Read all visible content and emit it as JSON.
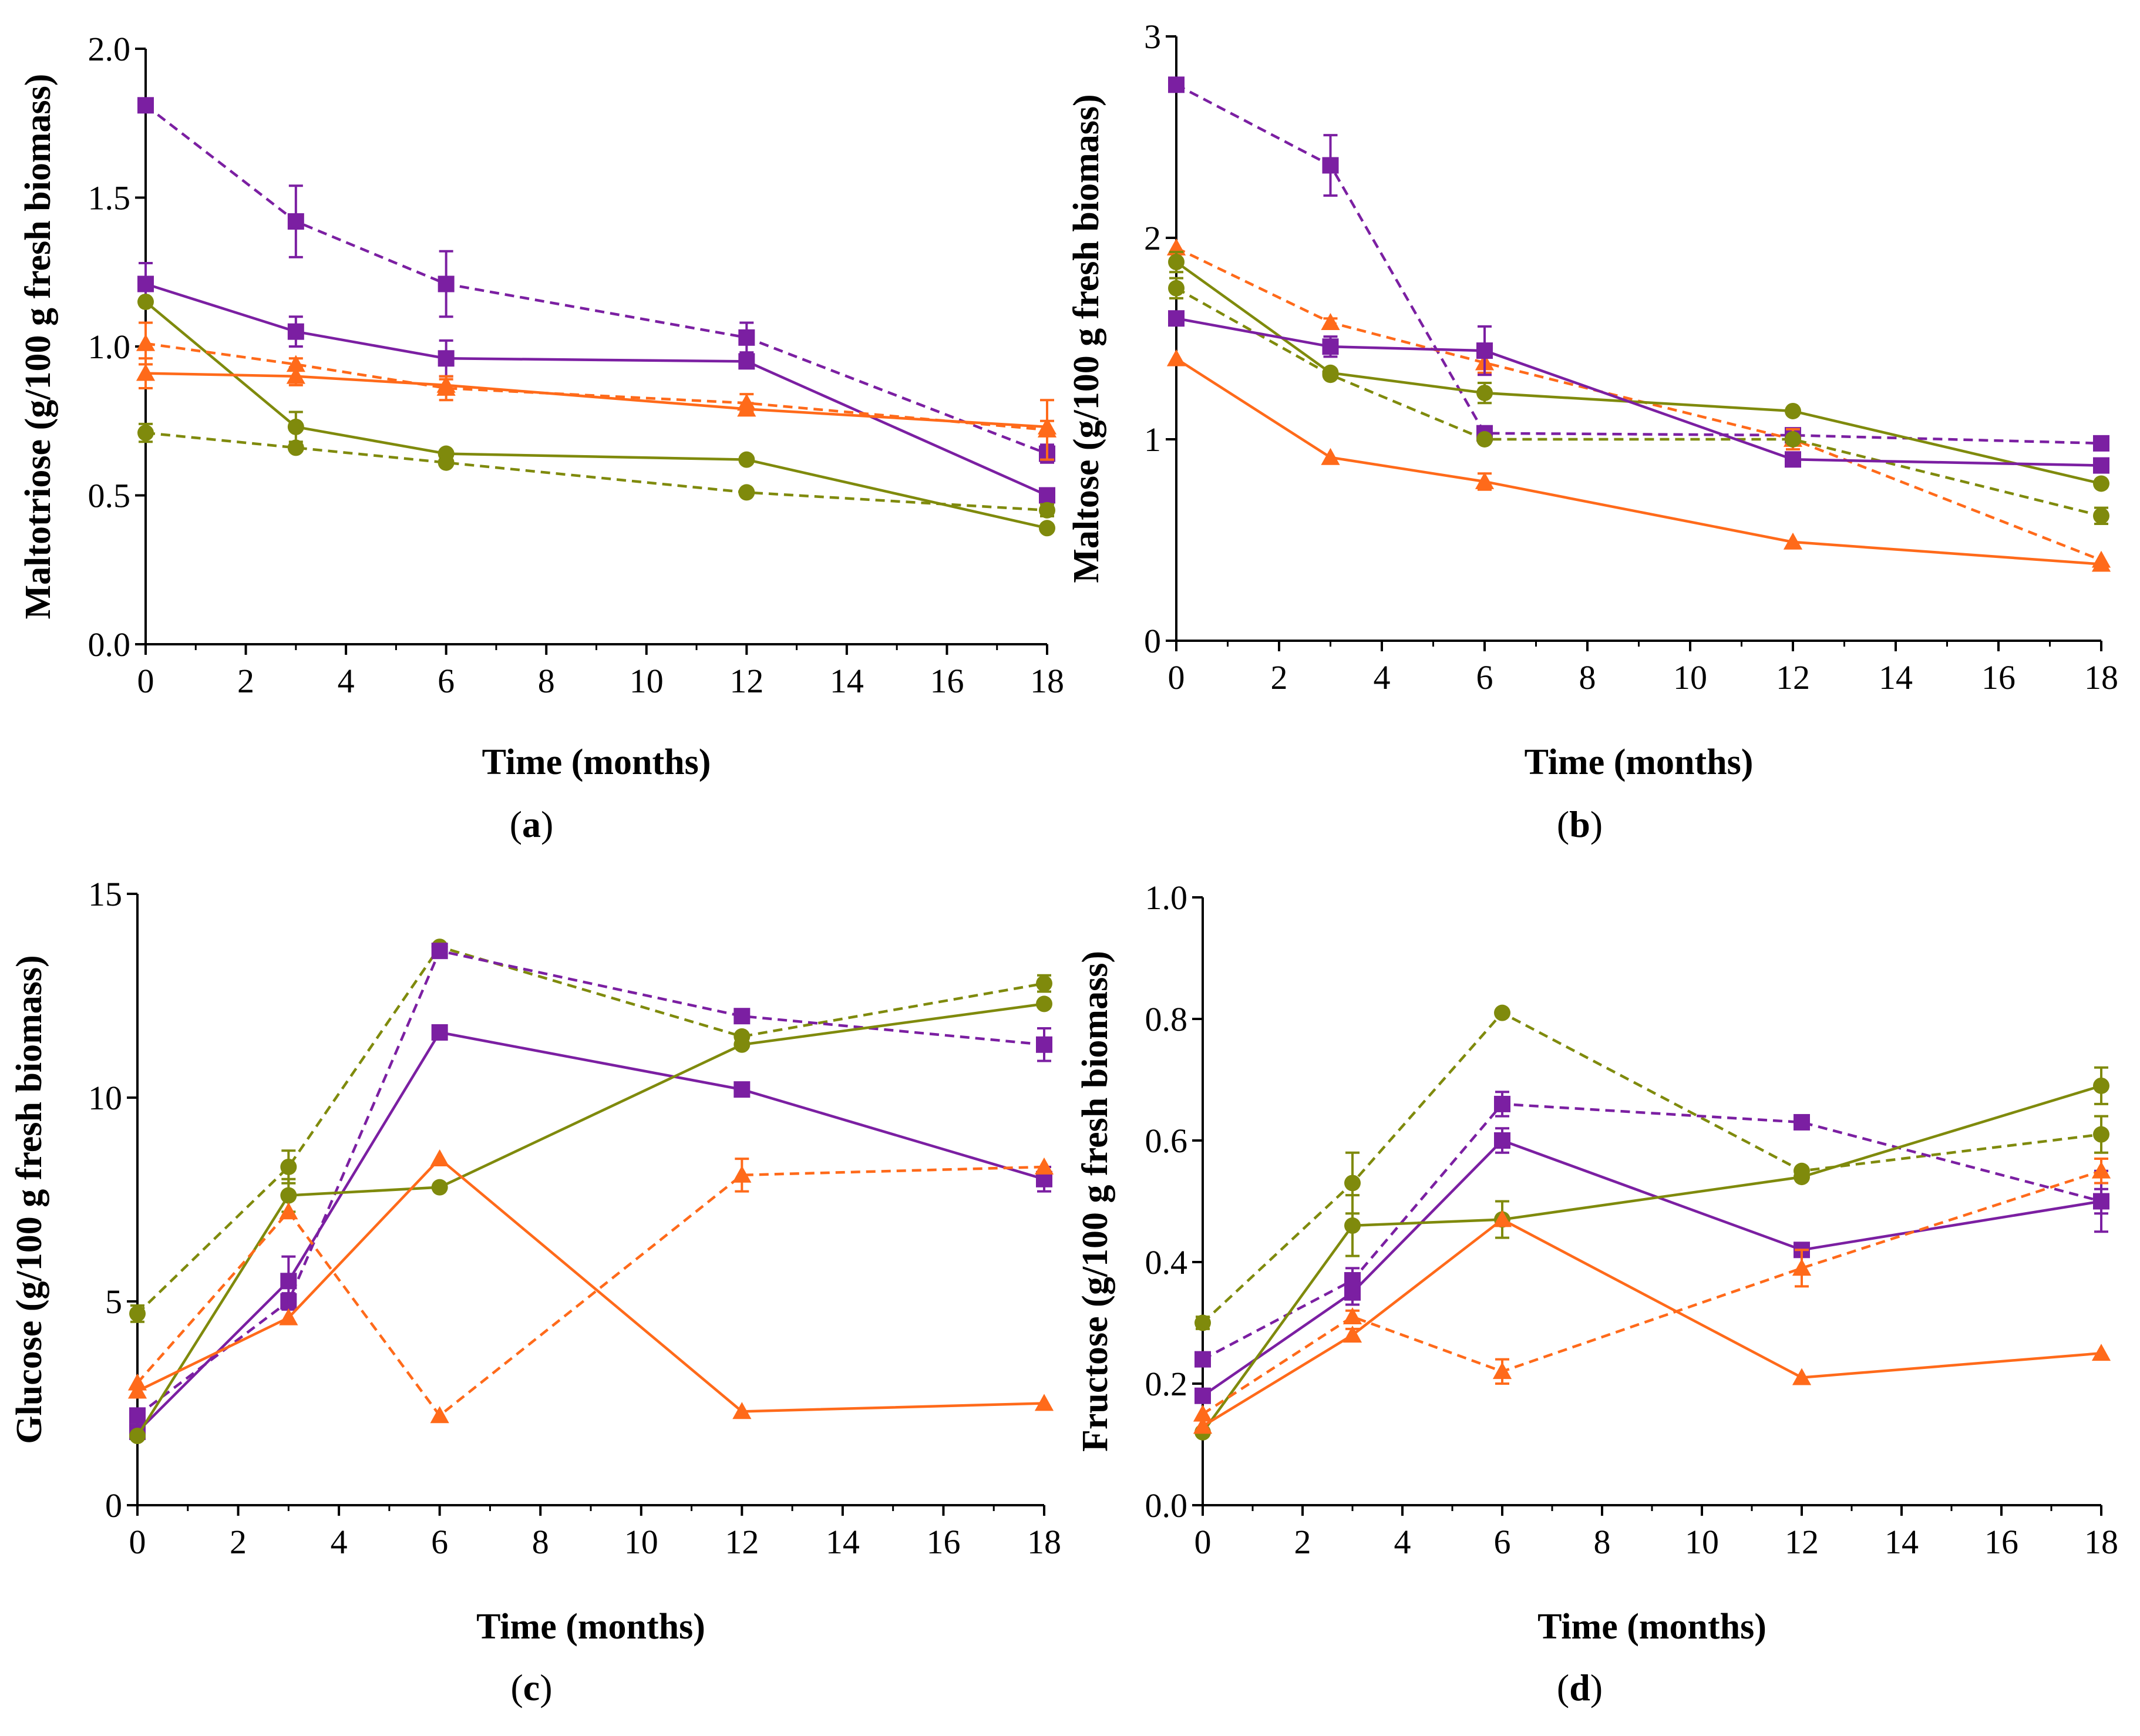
{
  "colors": {
    "purple": "#7b1fa2",
    "orange": "#ff6a1a",
    "olive": "#7f8a0c"
  },
  "chart_data": [
    {
      "type": "line",
      "panel_label": "a",
      "xlabel": "Time (months)",
      "ylabel": "Maltotriose (g/100 g fresh biomass)",
      "xlim": [
        0,
        18
      ],
      "ylim": [
        0,
        2.0
      ],
      "xticks": [
        "0",
        "2",
        "4",
        "6",
        "8",
        "10",
        "12",
        "14",
        "16",
        "18"
      ],
      "yticks": [
        "0.0",
        "0.5",
        "1.0",
        "1.5",
        "2.0"
      ],
      "x": [
        0,
        3,
        6,
        12,
        18
      ],
      "series": [
        {
          "name": "purple-dashed",
          "color": "purple",
          "dashed": true,
          "marker": "square",
          "values": [
            1.81,
            1.42,
            1.21,
            1.03,
            0.64
          ],
          "errors": [
            0,
            0.12,
            0.11,
            0.05,
            0.03
          ]
        },
        {
          "name": "purple-solid",
          "color": "purple",
          "dashed": false,
          "marker": "square",
          "values": [
            1.21,
            1.05,
            0.96,
            0.95,
            0.5
          ],
          "errors": [
            0.07,
            0.05,
            0.06,
            0.02,
            0
          ]
        },
        {
          "name": "olive-solid",
          "color": "olive",
          "dashed": false,
          "marker": "circle",
          "values": [
            1.15,
            0.73,
            0.64,
            0.62,
            0.39
          ],
          "errors": [
            0,
            0.05,
            0,
            0,
            0
          ]
        },
        {
          "name": "orange-dashed",
          "color": "orange",
          "dashed": true,
          "marker": "triangle",
          "values": [
            1.01,
            0.94,
            0.86,
            0.81,
            0.72
          ],
          "errors": [
            0.07,
            0.02,
            0.04,
            0.03,
            0.1
          ]
        },
        {
          "name": "orange-solid",
          "color": "orange",
          "dashed": false,
          "marker": "triangle",
          "values": [
            0.91,
            0.9,
            0.87,
            0.79,
            0.73
          ],
          "errors": [
            0.05,
            0.03,
            0.02,
            0.02,
            0.02
          ]
        },
        {
          "name": "olive-dashed",
          "color": "olive",
          "dashed": true,
          "marker": "circle",
          "values": [
            0.71,
            0.66,
            0.61,
            0.51,
            0.45
          ],
          "errors": [
            0.03,
            0,
            0,
            0,
            0.02
          ]
        }
      ]
    },
    {
      "type": "line",
      "panel_label": "b",
      "xlabel": "Time (months)",
      "ylabel": "Maltose (g/100 g fresh biomass)",
      "xlim": [
        0,
        18
      ],
      "ylim": [
        0,
        3
      ],
      "xticks": [
        "0",
        "2",
        "4",
        "6",
        "8",
        "10",
        "12",
        "14",
        "16",
        "18"
      ],
      "yticks": [
        "0",
        "1",
        "2",
        "3"
      ],
      "x": [
        0,
        3,
        6,
        12,
        18
      ],
      "series": [
        {
          "name": "purple-dashed",
          "color": "purple",
          "dashed": true,
          "marker": "square",
          "values": [
            2.76,
            2.36,
            1.03,
            1.02,
            0.98
          ],
          "errors": [
            0,
            0.15,
            0,
            0,
            0
          ]
        },
        {
          "name": "orange-dashed",
          "color": "orange",
          "dashed": true,
          "marker": "triangle",
          "values": [
            1.95,
            1.58,
            1.38,
            1.0,
            0.4
          ],
          "errors": [
            0,
            0.02,
            0.05,
            0.05,
            0
          ]
        },
        {
          "name": "olive-solid",
          "color": "olive",
          "dashed": false,
          "marker": "circle",
          "values": [
            1.88,
            1.33,
            1.23,
            1.14,
            0.78
          ],
          "errors": [
            0.05,
            0,
            0.05,
            0,
            0
          ]
        },
        {
          "name": "olive-dashed",
          "color": "olive",
          "dashed": true,
          "marker": "circle",
          "values": [
            1.75,
            1.32,
            1.0,
            1.0,
            0.62
          ],
          "errors": [
            0.05,
            0,
            0,
            0,
            0.04
          ]
        },
        {
          "name": "purple-solid",
          "color": "purple",
          "dashed": false,
          "marker": "square",
          "values": [
            1.6,
            1.46,
            1.44,
            0.9,
            0.87
          ],
          "errors": [
            0,
            0.05,
            0.12,
            0.03,
            0
          ]
        },
        {
          "name": "orange-solid",
          "color": "orange",
          "dashed": false,
          "marker": "triangle",
          "values": [
            1.4,
            0.91,
            0.79,
            0.49,
            0.38
          ],
          "errors": [
            0,
            0,
            0.04,
            0,
            0
          ]
        }
      ]
    },
    {
      "type": "line",
      "panel_label": "c",
      "xlabel": "Time (months)",
      "ylabel": "Glucose (g/100 g fresh biomass)",
      "xlim": [
        0,
        18
      ],
      "ylim": [
        0,
        15
      ],
      "xticks": [
        "0",
        "2",
        "4",
        "6",
        "8",
        "10",
        "12",
        "14",
        "16",
        "18"
      ],
      "yticks": [
        "0",
        "5",
        "10",
        "15"
      ],
      "x": [
        0,
        3,
        6,
        12,
        18
      ],
      "series": [
        {
          "name": "olive-dashed",
          "color": "olive",
          "dashed": true,
          "marker": "circle",
          "values": [
            4.7,
            8.3,
            13.7,
            11.5,
            12.8
          ],
          "errors": [
            0.2,
            0.4,
            0,
            0,
            0.2
          ]
        },
        {
          "name": "purple-dashed",
          "color": "purple",
          "dashed": true,
          "marker": "square",
          "values": [
            2.2,
            5.0,
            13.6,
            12.0,
            11.3
          ],
          "errors": [
            0,
            0.2,
            0,
            0,
            0.4
          ]
        },
        {
          "name": "purple-solid",
          "color": "purple",
          "dashed": false,
          "marker": "square",
          "values": [
            1.8,
            5.5,
            11.6,
            10.2,
            8.0
          ],
          "errors": [
            0,
            0.6,
            0,
            0,
            0.3
          ]
        },
        {
          "name": "olive-solid",
          "color": "olive",
          "dashed": false,
          "marker": "circle",
          "values": [
            1.7,
            7.6,
            7.8,
            11.3,
            12.3
          ],
          "errors": [
            0,
            0.4,
            0,
            0,
            0
          ]
        },
        {
          "name": "orange-dashed",
          "color": "orange",
          "dashed": true,
          "marker": "triangle",
          "values": [
            3.0,
            7.2,
            2.2,
            8.1,
            8.3
          ],
          "errors": [
            0,
            0,
            0,
            0.4,
            0
          ]
        },
        {
          "name": "orange-solid",
          "color": "orange",
          "dashed": false,
          "marker": "triangle",
          "values": [
            2.8,
            4.6,
            8.5,
            2.3,
            2.5
          ],
          "errors": [
            0,
            0,
            0,
            0,
            0
          ]
        }
      ]
    },
    {
      "type": "line",
      "panel_label": "d",
      "xlabel": "Time (months)",
      "ylabel": "Fructose (g/100 g fresh biomass)",
      "xlim": [
        0,
        18
      ],
      "ylim": [
        0,
        1.0
      ],
      "xticks": [
        "0",
        "2",
        "4",
        "6",
        "8",
        "10",
        "12",
        "14",
        "16",
        "18"
      ],
      "yticks": [
        "0.0",
        "0.2",
        "0.4",
        "0.6",
        "0.8",
        "1.0"
      ],
      "x": [
        0,
        3,
        6,
        12,
        18
      ],
      "series": [
        {
          "name": "olive-dashed",
          "color": "olive",
          "dashed": true,
          "marker": "circle",
          "values": [
            0.3,
            0.53,
            0.81,
            0.55,
            0.61
          ],
          "errors": [
            0.01,
            0.05,
            0,
            0,
            0.03
          ]
        },
        {
          "name": "purple-dashed",
          "color": "purple",
          "dashed": true,
          "marker": "square",
          "values": [
            0.24,
            0.37,
            0.66,
            0.63,
            0.5
          ],
          "errors": [
            0,
            0.02,
            0.02,
            0,
            0.05
          ]
        },
        {
          "name": "purple-solid",
          "color": "purple",
          "dashed": false,
          "marker": "square",
          "values": [
            0.18,
            0.35,
            0.6,
            0.42,
            0.5
          ],
          "errors": [
            0,
            0.02,
            0.02,
            0,
            0.02
          ]
        },
        {
          "name": "olive-solid",
          "color": "olive",
          "dashed": false,
          "marker": "circle",
          "values": [
            0.12,
            0.46,
            0.47,
            0.54,
            0.69
          ],
          "errors": [
            0,
            0.05,
            0.03,
            0,
            0.03
          ]
        },
        {
          "name": "orange-dashed",
          "color": "orange",
          "dashed": true,
          "marker": "triangle",
          "values": [
            0.15,
            0.31,
            0.22,
            0.39,
            0.55
          ],
          "errors": [
            0,
            0.01,
            0.02,
            0.03,
            0.02
          ]
        },
        {
          "name": "orange-solid",
          "color": "orange",
          "dashed": false,
          "marker": "triangle",
          "values": [
            0.13,
            0.28,
            0.47,
            0.21,
            0.25
          ],
          "errors": [
            0,
            0.01,
            0,
            0,
            0
          ]
        }
      ]
    }
  ]
}
